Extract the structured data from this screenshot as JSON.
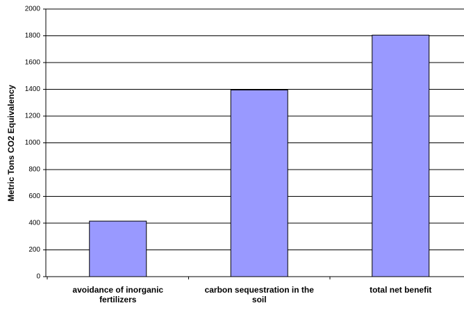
{
  "chart_data": {
    "type": "bar",
    "y_label": "Metric Tons CO2 Equivalency",
    "categories": [
      "avoidance of inorganic fertilizers",
      "carbon sequestration in the soil",
      "total net benefit"
    ],
    "values": [
      415,
      1395,
      1805
    ],
    "color": "#9999ff",
    "ylim": [
      0,
      2000
    ],
    "yticks": [
      0,
      200,
      400,
      600,
      800,
      1000,
      1200,
      1400,
      1600,
      1800,
      2000
    ],
    "grid": true
  }
}
